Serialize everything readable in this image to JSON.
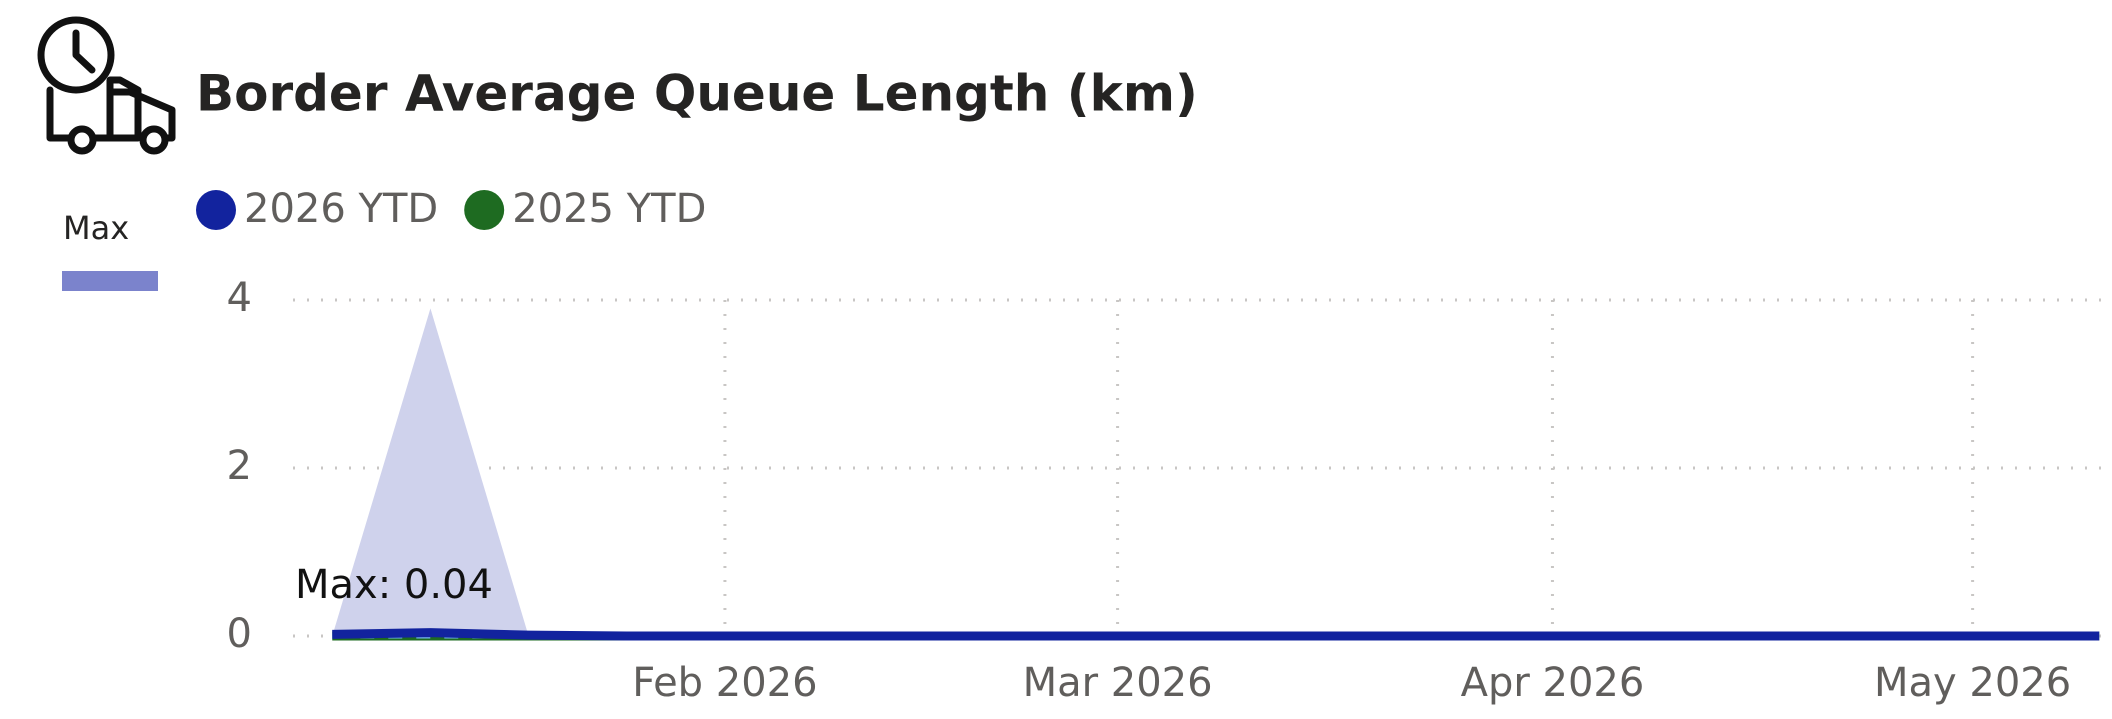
{
  "chart_data": {
    "type": "line",
    "title": "Border Average Queue Length (km)",
    "annotation": "Max: 0.04",
    "x": [
      0,
      1,
      2,
      3,
      4,
      5,
      6,
      7,
      8,
      9,
      10,
      11,
      12,
      13,
      14,
      15,
      16,
      17,
      18
    ],
    "xlim": [
      -0.4,
      18.13
    ],
    "xticks": [
      {
        "value": 4,
        "label": "Feb 2026"
      },
      {
        "value": 8,
        "label": "Mar 2026"
      },
      {
        "value": 12.43,
        "label": "Apr 2026"
      },
      {
        "value": 16.71,
        "label": "May 2026"
      }
    ],
    "ylim": [
      0,
      4
    ],
    "yticks": [
      0,
      2,
      4
    ],
    "grid": true,
    "band": {
      "name": "Max",
      "color": "#7b83cc",
      "values": [
        0,
        3.9,
        0,
        0,
        0,
        0,
        0,
        0,
        0,
        0,
        0,
        0,
        0,
        0,
        0,
        0,
        0,
        0,
        0
      ]
    },
    "series": [
      {
        "name": "2026 YTD",
        "color": "#12239e",
        "values": [
          0.02,
          0.04,
          0.01,
          0,
          0,
          0,
          0,
          0,
          0,
          0,
          0,
          0,
          0,
          0,
          0,
          0,
          0,
          0,
          0
        ]
      },
      {
        "name": "2025 YTD",
        "color": "#1e6b21",
        "values": [
          0,
          0,
          0,
          0,
          0,
          0,
          0,
          0,
          0,
          0,
          0,
          0,
          0,
          0,
          0,
          0,
          0,
          0,
          0
        ]
      }
    ]
  }
}
